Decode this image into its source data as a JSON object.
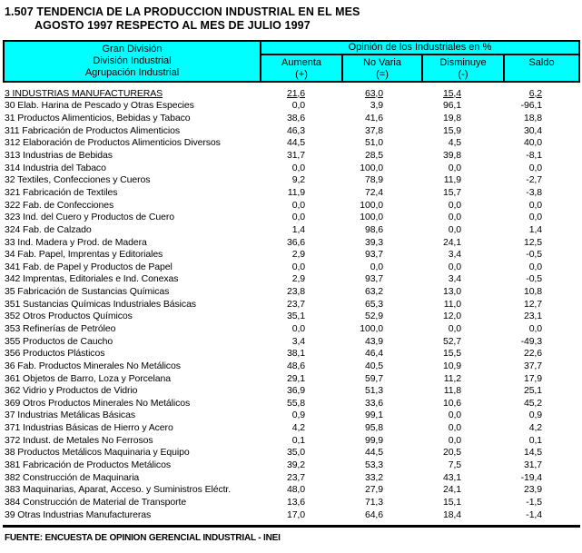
{
  "title": {
    "line1": "1.507 TENDENCIA DE LA PRODUCCION INDUSTRIAL EN EL MES",
    "line2": "AGOSTO 1997 RESPECTO AL MES DE JULIO 1997"
  },
  "colors": {
    "header_bg": "#00FFFF",
    "border": "#000000",
    "text": "#000000"
  },
  "table": {
    "header": {
      "left_lines": [
        "Gran División",
        "División Industrial",
        "Agrupación Industrial"
      ],
      "group_title": "Opinión de los Industriales en %",
      "columns": [
        {
          "label": "Aumenta",
          "sub": "(+)"
        },
        {
          "label": "No Varia",
          "sub": "(=)"
        },
        {
          "label": "Disminuye",
          "sub": "(-)"
        },
        {
          "label": "Saldo",
          "sub": ""
        }
      ]
    },
    "rows": [
      {
        "label": "3 INDUSTRIAS MANUFACTURERAS",
        "values": [
          "21,6",
          "63,0",
          "15,4",
          "6,2"
        ],
        "emphasis": true
      },
      {
        "label": "30 Elab. Harina de Pescado y Otras Especies",
        "values": [
          "0,0",
          "3,9",
          "96,1",
          "-96,1"
        ],
        "emphasis": false
      },
      {
        "label": "31 Productos Alimenticios, Bebidas y Tabaco",
        "values": [
          "38,6",
          "41,6",
          "19,8",
          "18,8"
        ],
        "emphasis": false
      },
      {
        "label": "311 Fabricación de Productos Alimenticios",
        "values": [
          "46,3",
          "37,8",
          "15,9",
          "30,4"
        ],
        "emphasis": false
      },
      {
        "label": "312 Elaboración de Productos Alimenticios Diversos",
        "values": [
          "44,5",
          "51,0",
          "4,5",
          "40,0"
        ],
        "emphasis": false
      },
      {
        "label": "313 Industrias de Bebidas",
        "values": [
          "31,7",
          "28,5",
          "39,8",
          "-8,1"
        ],
        "emphasis": false
      },
      {
        "label": "314 Industria del Tabaco",
        "values": [
          "0,0",
          "100,0",
          "0,0",
          "0,0"
        ],
        "emphasis": false
      },
      {
        "label": "32 Textiles, Confecciones y Cueros",
        "values": [
          "9,2",
          "78,9",
          "11,9",
          "-2,7"
        ],
        "emphasis": false
      },
      {
        "label": "321 Fabricación de Textiles",
        "values": [
          "11,9",
          "72,4",
          "15,7",
          "-3,8"
        ],
        "emphasis": false
      },
      {
        "label": "322 Fab. de Confecciones",
        "values": [
          "0,0",
          "100,0",
          "0,0",
          "0,0"
        ],
        "emphasis": false
      },
      {
        "label": "323 Ind. del Cuero y Productos de Cuero",
        "values": [
          "0,0",
          "100,0",
          "0,0",
          "0,0"
        ],
        "emphasis": false
      },
      {
        "label": "324 Fab. de Calzado",
        "values": [
          "1,4",
          "98,6",
          "0,0",
          "1,4"
        ],
        "emphasis": false
      },
      {
        "label": "33 Ind. Madera y Prod. de Madera",
        "values": [
          "36,6",
          "39,3",
          "24,1",
          "12,5"
        ],
        "emphasis": false
      },
      {
        "label": "34 Fab. Papel, Imprentas y Editoriales",
        "values": [
          "2,9",
          "93,7",
          "3,4",
          "-0,5"
        ],
        "emphasis": false
      },
      {
        "label": "341 Fab. de Papel y Productos de Papel",
        "values": [
          "0,0",
          "0,0",
          "0,0",
          "0,0"
        ],
        "emphasis": false
      },
      {
        "label": "342 Imprentas, Editoriales e Ind. Conexas",
        "values": [
          "2,9",
          "93,7",
          "3,4",
          "-0,5"
        ],
        "emphasis": false
      },
      {
        "label": "35 Fabricación de Sustancias Químicas",
        "values": [
          "23,8",
          "63,2",
          "13,0",
          "10,8"
        ],
        "emphasis": false
      },
      {
        "label": "351 Sustancias Químicas Industriales Básicas",
        "values": [
          "23,7",
          "65,3",
          "11,0",
          "12,7"
        ],
        "emphasis": false
      },
      {
        "label": "352 Otros Productos Químicos",
        "values": [
          "35,1",
          "52,9",
          "12,0",
          "23,1"
        ],
        "emphasis": false
      },
      {
        "label": "353 Refinerías de Petróleo",
        "values": [
          "0,0",
          "100,0",
          "0,0",
          "0,0"
        ],
        "emphasis": false
      },
      {
        "label": "355 Productos de Caucho",
        "values": [
          "3,4",
          "43,9",
          "52,7",
          "-49,3"
        ],
        "emphasis": false
      },
      {
        "label": "356 Productos Plásticos",
        "values": [
          "38,1",
          "46,4",
          "15,5",
          "22,6"
        ],
        "emphasis": false
      },
      {
        "label": "36 Fab. Productos Minerales No Metálicos",
        "values": [
          "48,6",
          "40,5",
          "10,9",
          "37,7"
        ],
        "emphasis": false
      },
      {
        "label": "361 Objetos de Barro, Loza y Porcelana",
        "values": [
          "29,1",
          "59,7",
          "11,2",
          "17,9"
        ],
        "emphasis": false
      },
      {
        "label": "362 Vidrio y Productos de Vidrio",
        "values": [
          "36,9",
          "51,3",
          "11,8",
          "25,1"
        ],
        "emphasis": false
      },
      {
        "label": "369 Otros Productos Minerales No Metálicos",
        "values": [
          "55,8",
          "33,6",
          "10,6",
          "45,2"
        ],
        "emphasis": false
      },
      {
        "label": "37 Industrias Metálicas Básicas",
        "values": [
          "0,9",
          "99,1",
          "0,0",
          "0,9"
        ],
        "emphasis": false
      },
      {
        "label": "371 Industrias Básicas de Hierro y Acero",
        "values": [
          "4,2",
          "95,8",
          "0,0",
          "4,2"
        ],
        "emphasis": false
      },
      {
        "label": "372 Indust. de Metales No Ferrosos",
        "values": [
          "0,1",
          "99,9",
          "0,0",
          "0,1"
        ],
        "emphasis": false
      },
      {
        "label": "38 Productos Metálicos Maquinaria y Equipo",
        "values": [
          "35,0",
          "44,5",
          "20,5",
          "14,5"
        ],
        "emphasis": false
      },
      {
        "label": "381 Fabricación de Productos Metálicos",
        "values": [
          "39,2",
          "53,3",
          "7,5",
          "31,7"
        ],
        "emphasis": false
      },
      {
        "label": "382 Construcción de Maquinaria",
        "values": [
          "23,7",
          "33,2",
          "43,1",
          "-19,4"
        ],
        "emphasis": false
      },
      {
        "label": "383 Maquinarias, Aparat, Acceso. y Suministros Eléctr.",
        "values": [
          "48,0",
          "27,9",
          "24,1",
          "23,9"
        ],
        "emphasis": false
      },
      {
        "label": "384 Construcción de Material de Transporte",
        "values": [
          "13,6",
          "71,3",
          "15,1",
          "-1,5"
        ],
        "emphasis": false
      },
      {
        "label": "39 Otras Industrias Manufactureras",
        "values": [
          "17,0",
          "64,6",
          "18,4",
          "-1,4"
        ],
        "emphasis": false
      }
    ]
  },
  "footer": {
    "source": "FUENTE: ENCUESTA DE OPINION GERENCIAL INDUSTRIAL - INEI"
  }
}
